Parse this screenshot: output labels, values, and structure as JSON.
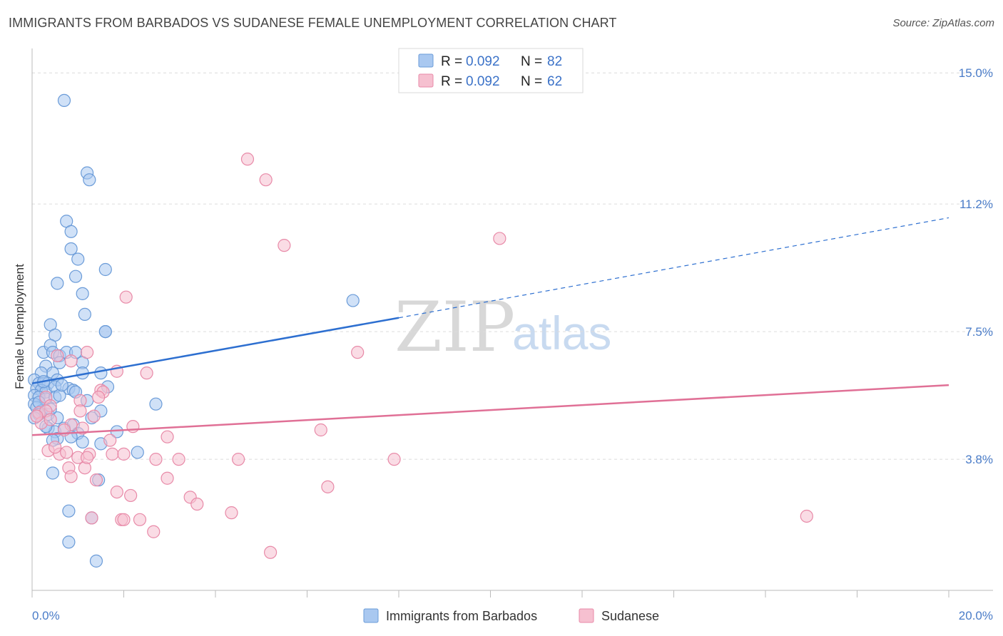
{
  "header": {
    "title": "IMMIGRANTS FROM BARBADOS VS SUDANESE FEMALE UNEMPLOYMENT CORRELATION CHART",
    "source": "Source: ZipAtlas.com"
  },
  "watermark": {
    "zip": "ZIP",
    "atlas": "atlas"
  },
  "colors": {
    "blue_fill": "#a9c8f0",
    "blue_stroke": "#6a9bd8",
    "blue_line": "#2d6fd0",
    "pink_fill": "#f6c0d0",
    "pink_stroke": "#e88aa8",
    "pink_line": "#e07096",
    "grid": "#dcdcdc",
    "axis_text": "#4a7cc8"
  },
  "legend": {
    "rows": [
      {
        "r_label": "R = ",
        "r_value": "0.092",
        "n_label": "N = ",
        "n_value": "82"
      },
      {
        "r_label": "R = ",
        "r_value": "0.092",
        "n_label": "N = ",
        "n_value": "62"
      }
    ]
  },
  "chart_data": {
    "type": "scatter",
    "title": "IMMIGRANTS FROM BARBADOS VS SUDANESE FEMALE UNEMPLOYMENT CORRELATION CHART",
    "xlabel": "",
    "ylabel": "Female Unemployment",
    "xlim": [
      0,
      20
    ],
    "ylim": [
      0,
      15.5
    ],
    "x_tick_labels": [
      "0.0%",
      "20.0%"
    ],
    "y_ticks": [
      3.8,
      7.5,
      11.2,
      15.0
    ],
    "y_tick_labels": [
      "3.8%",
      "7.5%",
      "11.2%",
      "15.0%"
    ],
    "grid": true,
    "series": [
      {
        "name": "Immigrants from Barbados",
        "color": "blue",
        "trend": {
          "x0": 0,
          "y0": 6.0,
          "x1": 8.0,
          "y1": 7.9,
          "x_dash_end": 20,
          "y_dash_end": 10.8
        },
        "points": [
          [
            0.7,
            14.2
          ],
          [
            1.2,
            12.1
          ],
          [
            1.25,
            11.9
          ],
          [
            0.75,
            10.7
          ],
          [
            0.85,
            10.4
          ],
          [
            0.85,
            9.9
          ],
          [
            1.0,
            9.6
          ],
          [
            1.6,
            9.3
          ],
          [
            0.55,
            8.9
          ],
          [
            0.95,
            9.1
          ],
          [
            1.1,
            8.6
          ],
          [
            7.0,
            8.4
          ],
          [
            1.15,
            8.0
          ],
          [
            0.4,
            7.7
          ],
          [
            0.5,
            7.4
          ],
          [
            1.6,
            7.5
          ],
          [
            1.6,
            7.5
          ],
          [
            0.25,
            6.9
          ],
          [
            0.4,
            7.1
          ],
          [
            0.45,
            6.9
          ],
          [
            0.6,
            6.8
          ],
          [
            0.75,
            6.9
          ],
          [
            0.95,
            6.9
          ],
          [
            0.3,
            6.5
          ],
          [
            0.45,
            6.3
          ],
          [
            0.6,
            6.6
          ],
          [
            1.1,
            6.6
          ],
          [
            0.2,
            6.3
          ],
          [
            1.1,
            6.3
          ],
          [
            1.5,
            6.3
          ],
          [
            0.05,
            6.1
          ],
          [
            0.15,
            6.0
          ],
          [
            0.25,
            6.0
          ],
          [
            0.35,
            6.0
          ],
          [
            0.55,
            6.1
          ],
          [
            0.1,
            5.85
          ],
          [
            0.2,
            5.8
          ],
          [
            0.3,
            5.75
          ],
          [
            0.5,
            5.9
          ],
          [
            0.8,
            5.85
          ],
          [
            0.9,
            5.8
          ],
          [
            0.95,
            5.75
          ],
          [
            1.65,
            5.9
          ],
          [
            0.05,
            5.65
          ],
          [
            0.15,
            5.6
          ],
          [
            0.3,
            5.55
          ],
          [
            0.5,
            5.6
          ],
          [
            0.6,
            5.65
          ],
          [
            1.2,
            5.5
          ],
          [
            0.05,
            5.4
          ],
          [
            0.1,
            5.3
          ],
          [
            0.2,
            5.2
          ],
          [
            0.35,
            5.1
          ],
          [
            0.55,
            5.0
          ],
          [
            1.5,
            5.2
          ],
          [
            2.7,
            5.4
          ],
          [
            0.15,
            5.1
          ],
          [
            0.05,
            5.0
          ],
          [
            1.3,
            5.0
          ],
          [
            0.35,
            4.7
          ],
          [
            0.5,
            4.6
          ],
          [
            0.7,
            4.7
          ],
          [
            0.9,
            4.8
          ],
          [
            1.0,
            4.55
          ],
          [
            0.55,
            4.4
          ],
          [
            0.45,
            4.35
          ],
          [
            1.1,
            4.3
          ],
          [
            1.5,
            4.25
          ],
          [
            1.85,
            4.6
          ],
          [
            2.3,
            4.0
          ],
          [
            0.45,
            3.4
          ],
          [
            1.45,
            3.2
          ],
          [
            0.8,
            2.3
          ],
          [
            1.3,
            2.1
          ],
          [
            0.8,
            1.4
          ],
          [
            1.4,
            0.85
          ],
          [
            0.25,
            6.05
          ],
          [
            0.65,
            5.95
          ],
          [
            0.15,
            5.45
          ],
          [
            0.4,
            5.25
          ],
          [
            0.3,
            4.75
          ],
          [
            0.85,
            4.45
          ]
        ]
      },
      {
        "name": "Sudanese",
        "color": "pink",
        "trend": {
          "x0": 0,
          "y0": 4.5,
          "x1": 20,
          "y1": 5.95
        },
        "points": [
          [
            4.7,
            12.5
          ],
          [
            5.1,
            11.9
          ],
          [
            5.5,
            10.0
          ],
          [
            10.2,
            10.2
          ],
          [
            2.05,
            8.5
          ],
          [
            7.1,
            6.9
          ],
          [
            1.2,
            6.9
          ],
          [
            2.5,
            6.3
          ],
          [
            1.85,
            6.35
          ],
          [
            0.55,
            6.8
          ],
          [
            0.85,
            6.65
          ],
          [
            1.5,
            5.8
          ],
          [
            1.55,
            5.75
          ],
          [
            1.45,
            5.6
          ],
          [
            0.3,
            5.6
          ],
          [
            0.4,
            5.35
          ],
          [
            1.05,
            5.5
          ],
          [
            1.05,
            5.2
          ],
          [
            1.35,
            5.05
          ],
          [
            0.15,
            5.15
          ],
          [
            0.3,
            5.2
          ],
          [
            0.2,
            4.85
          ],
          [
            0.4,
            4.95
          ],
          [
            0.85,
            4.8
          ],
          [
            0.7,
            4.65
          ],
          [
            1.1,
            4.7
          ],
          [
            2.2,
            4.75
          ],
          [
            6.3,
            4.65
          ],
          [
            1.7,
            4.35
          ],
          [
            2.95,
            4.45
          ],
          [
            0.35,
            4.05
          ],
          [
            0.6,
            3.95
          ],
          [
            0.75,
            4.0
          ],
          [
            1.0,
            3.85
          ],
          [
            1.25,
            3.95
          ],
          [
            1.75,
            3.95
          ],
          [
            2.0,
            3.95
          ],
          [
            2.7,
            3.8
          ],
          [
            3.2,
            3.8
          ],
          [
            4.5,
            3.8
          ],
          [
            7.9,
            3.8
          ],
          [
            0.8,
            3.55
          ],
          [
            1.15,
            3.55
          ],
          [
            0.85,
            3.3
          ],
          [
            2.95,
            3.25
          ],
          [
            1.4,
            3.2
          ],
          [
            6.45,
            3.0
          ],
          [
            1.85,
            2.85
          ],
          [
            2.15,
            2.75
          ],
          [
            3.45,
            2.7
          ],
          [
            3.6,
            2.5
          ],
          [
            4.35,
            2.25
          ],
          [
            1.3,
            2.1
          ],
          [
            1.95,
            2.05
          ],
          [
            2.0,
            2.05
          ],
          [
            2.35,
            2.05
          ],
          [
            16.9,
            2.15
          ],
          [
            2.65,
            1.7
          ],
          [
            5.2,
            1.1
          ],
          [
            0.1,
            5.05
          ],
          [
            0.5,
            4.15
          ],
          [
            1.2,
            3.85
          ]
        ]
      }
    ]
  },
  "bottom_legend": {
    "items": [
      {
        "label": "Immigrants from Barbados"
      },
      {
        "label": "Sudanese"
      }
    ]
  }
}
